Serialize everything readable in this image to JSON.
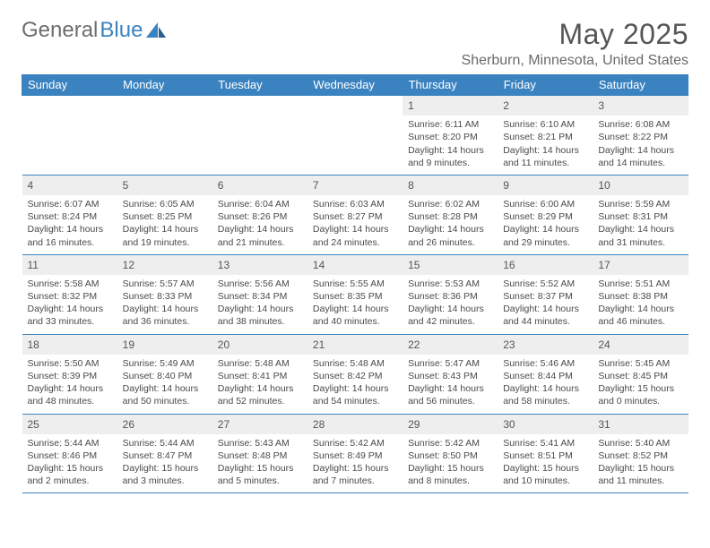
{
  "logo": {
    "text1": "General",
    "text2": "Blue"
  },
  "header": {
    "month_title": "May 2025",
    "location": "Sherburn, Minnesota, United States"
  },
  "colors": {
    "header_bg": "#3b83c0",
    "header_fg": "#ffffff",
    "daynum_bg": "#eeeeee",
    "border": "#3b83c0",
    "text": "#4a4a4a",
    "title": "#555555"
  },
  "weekdays": [
    "Sunday",
    "Monday",
    "Tuesday",
    "Wednesday",
    "Thursday",
    "Friday",
    "Saturday"
  ],
  "weeks": [
    [
      null,
      null,
      null,
      null,
      {
        "n": "1",
        "sr": "Sunrise: 6:11 AM",
        "ss": "Sunset: 8:20 PM",
        "dl": "Daylight: 14 hours and 9 minutes."
      },
      {
        "n": "2",
        "sr": "Sunrise: 6:10 AM",
        "ss": "Sunset: 8:21 PM",
        "dl": "Daylight: 14 hours and 11 minutes."
      },
      {
        "n": "3",
        "sr": "Sunrise: 6:08 AM",
        "ss": "Sunset: 8:22 PM",
        "dl": "Daylight: 14 hours and 14 minutes."
      }
    ],
    [
      {
        "n": "4",
        "sr": "Sunrise: 6:07 AM",
        "ss": "Sunset: 8:24 PM",
        "dl": "Daylight: 14 hours and 16 minutes."
      },
      {
        "n": "5",
        "sr": "Sunrise: 6:05 AM",
        "ss": "Sunset: 8:25 PM",
        "dl": "Daylight: 14 hours and 19 minutes."
      },
      {
        "n": "6",
        "sr": "Sunrise: 6:04 AM",
        "ss": "Sunset: 8:26 PM",
        "dl": "Daylight: 14 hours and 21 minutes."
      },
      {
        "n": "7",
        "sr": "Sunrise: 6:03 AM",
        "ss": "Sunset: 8:27 PM",
        "dl": "Daylight: 14 hours and 24 minutes."
      },
      {
        "n": "8",
        "sr": "Sunrise: 6:02 AM",
        "ss": "Sunset: 8:28 PM",
        "dl": "Daylight: 14 hours and 26 minutes."
      },
      {
        "n": "9",
        "sr": "Sunrise: 6:00 AM",
        "ss": "Sunset: 8:29 PM",
        "dl": "Daylight: 14 hours and 29 minutes."
      },
      {
        "n": "10",
        "sr": "Sunrise: 5:59 AM",
        "ss": "Sunset: 8:31 PM",
        "dl": "Daylight: 14 hours and 31 minutes."
      }
    ],
    [
      {
        "n": "11",
        "sr": "Sunrise: 5:58 AM",
        "ss": "Sunset: 8:32 PM",
        "dl": "Daylight: 14 hours and 33 minutes."
      },
      {
        "n": "12",
        "sr": "Sunrise: 5:57 AM",
        "ss": "Sunset: 8:33 PM",
        "dl": "Daylight: 14 hours and 36 minutes."
      },
      {
        "n": "13",
        "sr": "Sunrise: 5:56 AM",
        "ss": "Sunset: 8:34 PM",
        "dl": "Daylight: 14 hours and 38 minutes."
      },
      {
        "n": "14",
        "sr": "Sunrise: 5:55 AM",
        "ss": "Sunset: 8:35 PM",
        "dl": "Daylight: 14 hours and 40 minutes."
      },
      {
        "n": "15",
        "sr": "Sunrise: 5:53 AM",
        "ss": "Sunset: 8:36 PM",
        "dl": "Daylight: 14 hours and 42 minutes."
      },
      {
        "n": "16",
        "sr": "Sunrise: 5:52 AM",
        "ss": "Sunset: 8:37 PM",
        "dl": "Daylight: 14 hours and 44 minutes."
      },
      {
        "n": "17",
        "sr": "Sunrise: 5:51 AM",
        "ss": "Sunset: 8:38 PM",
        "dl": "Daylight: 14 hours and 46 minutes."
      }
    ],
    [
      {
        "n": "18",
        "sr": "Sunrise: 5:50 AM",
        "ss": "Sunset: 8:39 PM",
        "dl": "Daylight: 14 hours and 48 minutes."
      },
      {
        "n": "19",
        "sr": "Sunrise: 5:49 AM",
        "ss": "Sunset: 8:40 PM",
        "dl": "Daylight: 14 hours and 50 minutes."
      },
      {
        "n": "20",
        "sr": "Sunrise: 5:48 AM",
        "ss": "Sunset: 8:41 PM",
        "dl": "Daylight: 14 hours and 52 minutes."
      },
      {
        "n": "21",
        "sr": "Sunrise: 5:48 AM",
        "ss": "Sunset: 8:42 PM",
        "dl": "Daylight: 14 hours and 54 minutes."
      },
      {
        "n": "22",
        "sr": "Sunrise: 5:47 AM",
        "ss": "Sunset: 8:43 PM",
        "dl": "Daylight: 14 hours and 56 minutes."
      },
      {
        "n": "23",
        "sr": "Sunrise: 5:46 AM",
        "ss": "Sunset: 8:44 PM",
        "dl": "Daylight: 14 hours and 58 minutes."
      },
      {
        "n": "24",
        "sr": "Sunrise: 5:45 AM",
        "ss": "Sunset: 8:45 PM",
        "dl": "Daylight: 15 hours and 0 minutes."
      }
    ],
    [
      {
        "n": "25",
        "sr": "Sunrise: 5:44 AM",
        "ss": "Sunset: 8:46 PM",
        "dl": "Daylight: 15 hours and 2 minutes."
      },
      {
        "n": "26",
        "sr": "Sunrise: 5:44 AM",
        "ss": "Sunset: 8:47 PM",
        "dl": "Daylight: 15 hours and 3 minutes."
      },
      {
        "n": "27",
        "sr": "Sunrise: 5:43 AM",
        "ss": "Sunset: 8:48 PM",
        "dl": "Daylight: 15 hours and 5 minutes."
      },
      {
        "n": "28",
        "sr": "Sunrise: 5:42 AM",
        "ss": "Sunset: 8:49 PM",
        "dl": "Daylight: 15 hours and 7 minutes."
      },
      {
        "n": "29",
        "sr": "Sunrise: 5:42 AM",
        "ss": "Sunset: 8:50 PM",
        "dl": "Daylight: 15 hours and 8 minutes."
      },
      {
        "n": "30",
        "sr": "Sunrise: 5:41 AM",
        "ss": "Sunset: 8:51 PM",
        "dl": "Daylight: 15 hours and 10 minutes."
      },
      {
        "n": "31",
        "sr": "Sunrise: 5:40 AM",
        "ss": "Sunset: 8:52 PM",
        "dl": "Daylight: 15 hours and 11 minutes."
      }
    ]
  ]
}
